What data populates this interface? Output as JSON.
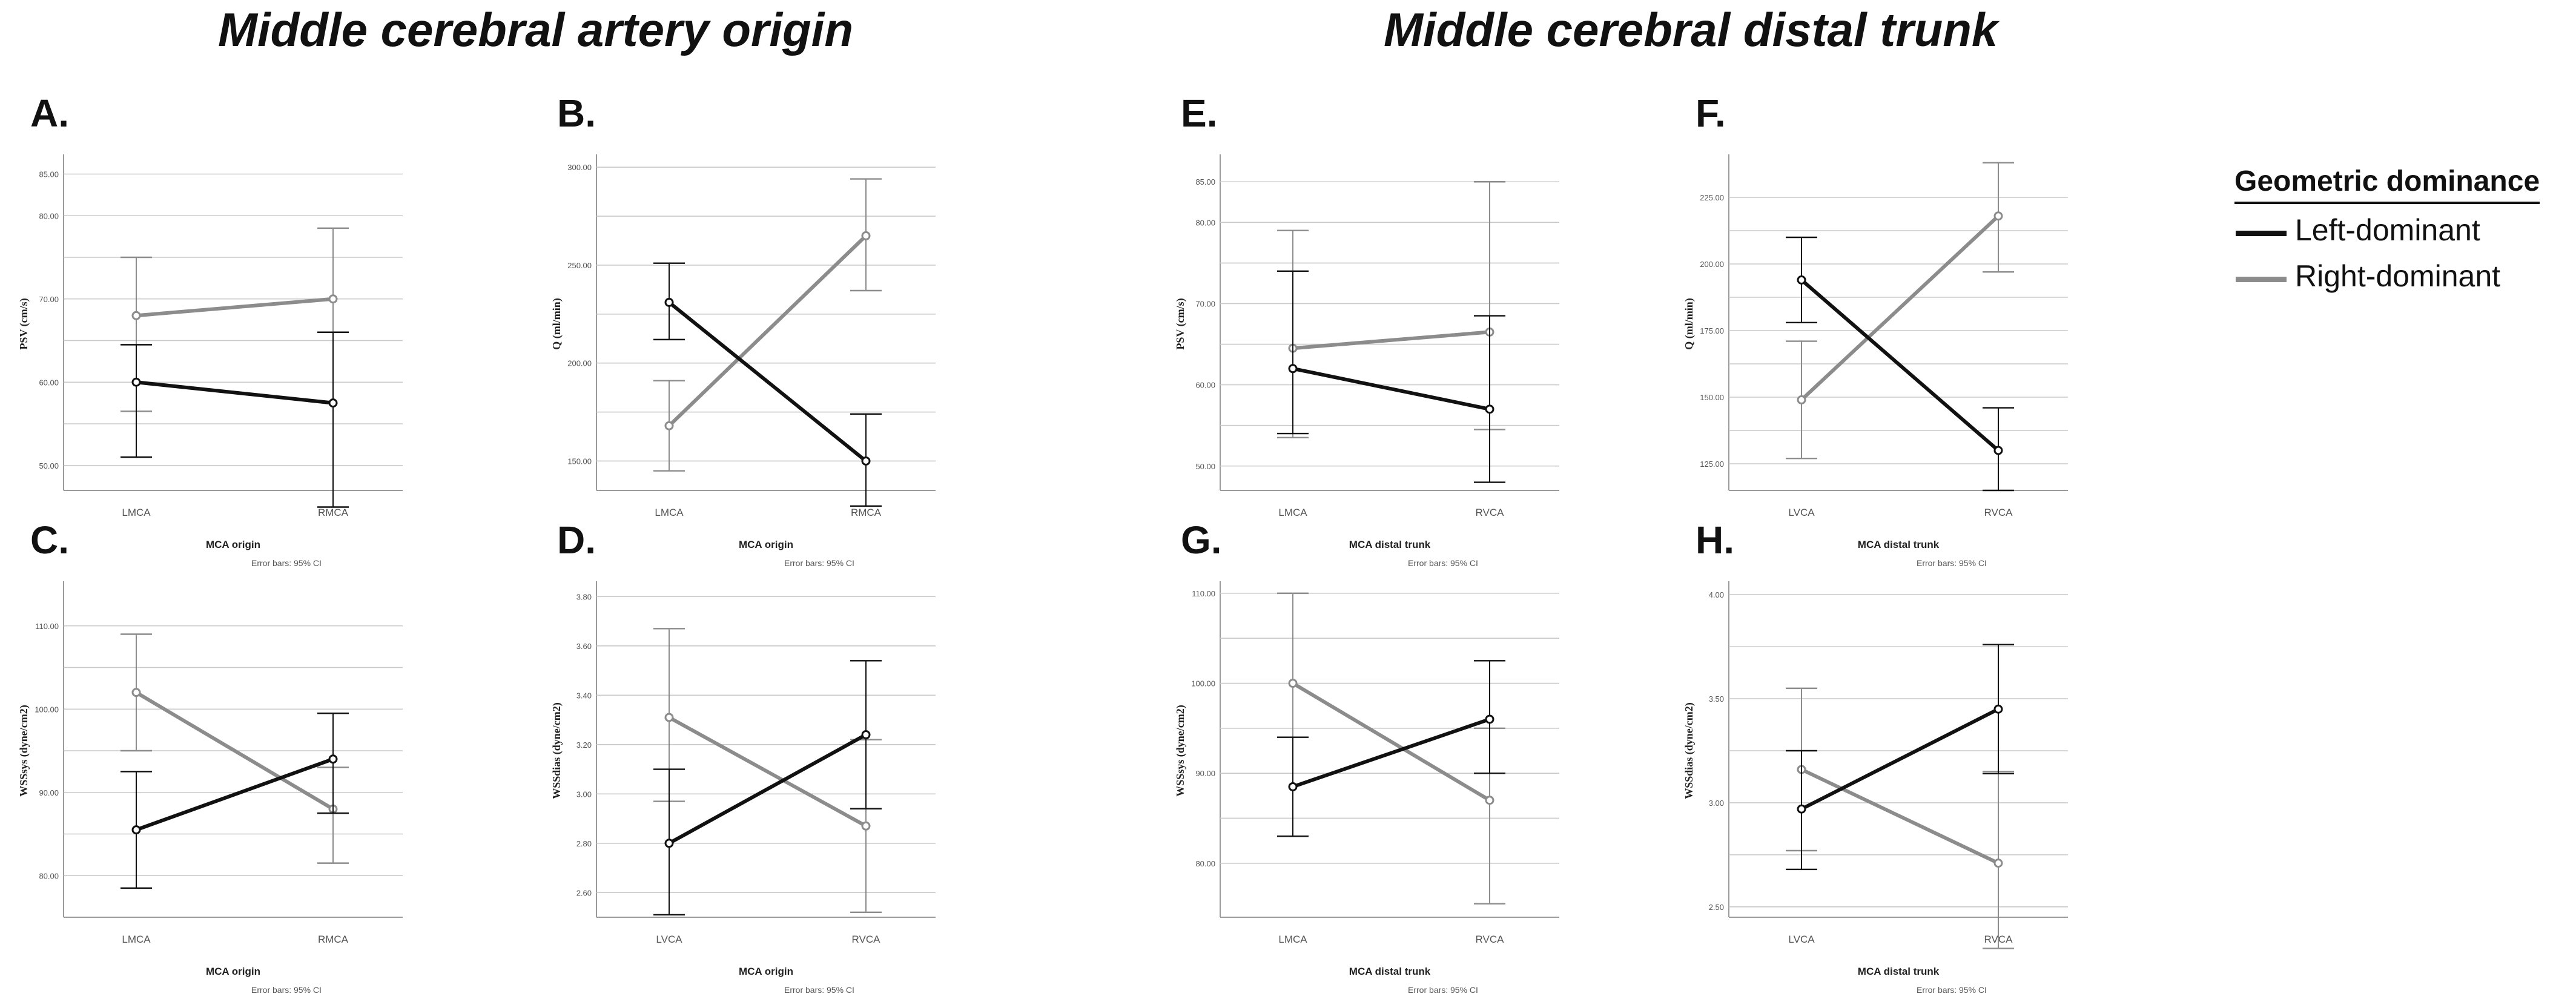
{
  "section_titles": {
    "left": "Middle cerebral artery origin",
    "right": "Middle cerebral distal trunk"
  },
  "legend": {
    "title": "Geometric dominance",
    "items": [
      {
        "label": "Left-dominant",
        "color": "#111111"
      },
      {
        "label": "Right-dominant",
        "color": "#8c8c8c"
      }
    ]
  },
  "series_colors": [
    "#111111",
    "#8c8c8c"
  ],
  "chart_data": [
    {
      "id": "A",
      "letter": "A.",
      "type": "line",
      "ylabel": "PSV (cm/s)",
      "xlabel": "MCA origin",
      "note": "Error bars: 95% CI",
      "categories": [
        "LMCA",
        "RMCA"
      ],
      "ylim": [
        47,
        87
      ],
      "yticks": [
        50,
        60,
        70,
        80,
        85
      ],
      "ytick_labels": [
        "50.00",
        "60.00",
        "70.00",
        "80.00",
        "85.00"
      ],
      "gridlines": [
        55,
        65,
        75
      ],
      "series": [
        {
          "name": "Left-dominant",
          "values": [
            60.0,
            57.5
          ],
          "ci_low": [
            51.0,
            45.0
          ],
          "ci_high": [
            64.5,
            66.0
          ]
        },
        {
          "name": "Right-dominant",
          "values": [
            68.0,
            70.0
          ],
          "ci_low": [
            56.5,
            66.0
          ],
          "ci_high": [
            75.0,
            78.5
          ]
        }
      ]
    },
    {
      "id": "B",
      "letter": "B.",
      "type": "line",
      "ylabel": "Q (ml/min)",
      "xlabel": "MCA origin",
      "note": "Error bars: 95% CI",
      "categories": [
        "LMCA",
        "RMCA"
      ],
      "ylim": [
        135,
        305
      ],
      "yticks": [
        150,
        200,
        250,
        300
      ],
      "ytick_labels": [
        "150.00",
        "200.00",
        "250.00",
        "300.00"
      ],
      "gridlines": [
        175,
        225,
        275
      ],
      "series": [
        {
          "name": "Left-dominant",
          "values": [
            231,
            150
          ],
          "ci_low": [
            212,
            127
          ],
          "ci_high": [
            251,
            174
          ]
        },
        {
          "name": "Right-dominant",
          "values": [
            168,
            265
          ],
          "ci_low": [
            145,
            237
          ],
          "ci_high": [
            191,
            294
          ]
        }
      ]
    },
    {
      "id": "E",
      "letter": "E.",
      "type": "line",
      "ylabel": "PSV (cm/s)",
      "xlabel": "MCA distal trunk",
      "note": "Error bars: 95% CI",
      "categories": [
        "LMCA",
        "RVCA"
      ],
      "ylim": [
        47,
        88
      ],
      "yticks": [
        50,
        60,
        70,
        80,
        85
      ],
      "ytick_labels": [
        "50.00",
        "60.00",
        "70.00",
        "80.00",
        "85.00"
      ],
      "gridlines": [
        55,
        65,
        75
      ],
      "series": [
        {
          "name": "Left-dominant",
          "values": [
            62.0,
            57.0
          ],
          "ci_low": [
            54.0,
            48.0
          ],
          "ci_high": [
            74.0,
            68.5
          ]
        },
        {
          "name": "Right-dominant",
          "values": [
            64.5,
            66.5
          ],
          "ci_low": [
            53.5,
            54.5
          ],
          "ci_high": [
            79.0,
            85.0
          ]
        }
      ]
    },
    {
      "id": "F",
      "letter": "F.",
      "type": "line",
      "ylabel": "Q (ml/min)",
      "xlabel": "MCA distal trunk",
      "note": "Error bars: 95% CI",
      "categories": [
        "LVCA",
        "RVCA"
      ],
      "ylim": [
        115,
        240
      ],
      "yticks": [
        125,
        150,
        175,
        200,
        225
      ],
      "ytick_labels": [
        "125.00",
        "150.00",
        "175.00",
        "200.00",
        "225.00"
      ],
      "gridlines": [
        137.5,
        162.5,
        187.5,
        212.5
      ],
      "series": [
        {
          "name": "Left-dominant",
          "values": [
            194,
            130
          ],
          "ci_low": [
            178,
            115
          ],
          "ci_high": [
            210,
            146
          ]
        },
        {
          "name": "Right-dominant",
          "values": [
            149,
            218
          ],
          "ci_low": [
            127,
            197
          ],
          "ci_high": [
            171,
            238
          ]
        }
      ]
    },
    {
      "id": "C",
      "letter": "C.",
      "type": "line",
      "ylabel": "WSSsys (dyne/cm2)",
      "xlabel": "MCA origin",
      "note": "Error bars: 95% CI",
      "categories": [
        "LMCA",
        "RMCA"
      ],
      "ylim": [
        75,
        115
      ],
      "yticks": [
        80,
        90,
        100,
        110
      ],
      "ytick_labels": [
        "80.00",
        "90.00",
        "100.00",
        "110.00"
      ],
      "gridlines": [
        85,
        95,
        105
      ],
      "series": [
        {
          "name": "Left-dominant",
          "values": [
            85.5,
            94.0
          ],
          "ci_low": [
            78.5,
            87.5
          ],
          "ci_high": [
            92.5,
            99.5
          ]
        },
        {
          "name": "Right-dominant",
          "values": [
            102.0,
            88.0
          ],
          "ci_low": [
            95.0,
            81.5
          ],
          "ci_high": [
            109.0,
            93.0
          ]
        }
      ]
    },
    {
      "id": "D",
      "letter": "D.",
      "type": "line",
      "ylabel": "WSSdias (dyne/cm2)",
      "xlabel": "MCA origin",
      "note": "Error bars: 95% CI",
      "categories": [
        "LVCA",
        "RVCA"
      ],
      "ylim": [
        2.5,
        3.85
      ],
      "yticks": [
        2.6,
        2.8,
        3.0,
        3.2,
        3.4,
        3.6,
        3.8
      ],
      "ytick_labels": [
        "2.60",
        "2.80",
        "3.00",
        "3.20",
        "3.40",
        "3.60",
        "3.80"
      ],
      "gridlines": [],
      "series": [
        {
          "name": "Left-dominant",
          "values": [
            2.8,
            3.24
          ],
          "ci_low": [
            2.51,
            2.94
          ],
          "ci_high": [
            3.1,
            3.54
          ]
        },
        {
          "name": "Right-dominant",
          "values": [
            3.31,
            2.87
          ],
          "ci_low": [
            2.97,
            2.52
          ],
          "ci_high": [
            3.67,
            3.22
          ]
        }
      ]
    },
    {
      "id": "G",
      "letter": "G.",
      "type": "line",
      "ylabel": "WSSsys (dyne/cm2)",
      "xlabel": "MCA distal trunk",
      "note": "Error bars: 95% CI",
      "categories": [
        "LMCA",
        "RVCA"
      ],
      "ylim": [
        74,
        111
      ],
      "yticks": [
        80,
        90,
        100,
        110
      ],
      "ytick_labels": [
        "80.00",
        "90.00",
        "100.00",
        "110.00"
      ],
      "gridlines": [
        85,
        95,
        105
      ],
      "series": [
        {
          "name": "Left-dominant",
          "values": [
            88.5,
            96.0
          ],
          "ci_low": [
            83.0,
            90.0
          ],
          "ci_high": [
            94.0,
            102.5
          ]
        },
        {
          "name": "Right-dominant",
          "values": [
            100.0,
            87.0
          ],
          "ci_low": [
            83.0,
            75.5
          ],
          "ci_high": [
            110.0,
            95.0
          ]
        }
      ]
    },
    {
      "id": "H",
      "letter": "H.",
      "type": "line",
      "ylabel": "WSSdias (dyne/cm2)",
      "xlabel": "MCA distal trunk",
      "note": "Error bars: 95% CI",
      "categories": [
        "LVCA",
        "RVCA"
      ],
      "ylim": [
        2.45,
        4.05
      ],
      "yticks": [
        2.5,
        3.0,
        3.5,
        4.0
      ],
      "ytick_labels": [
        "2.50",
        "3.00",
        "3.50",
        "4.00"
      ],
      "gridlines": [
        2.75,
        3.25,
        3.75
      ],
      "series": [
        {
          "name": "Left-dominant",
          "values": [
            2.97,
            3.45
          ],
          "ci_low": [
            2.68,
            3.14
          ],
          "ci_high": [
            3.25,
            3.76
          ]
        },
        {
          "name": "Right-dominant",
          "values": [
            3.16,
            2.71
          ],
          "ci_low": [
            2.77,
            2.3
          ],
          "ci_high": [
            3.55,
            3.15
          ]
        }
      ]
    }
  ]
}
